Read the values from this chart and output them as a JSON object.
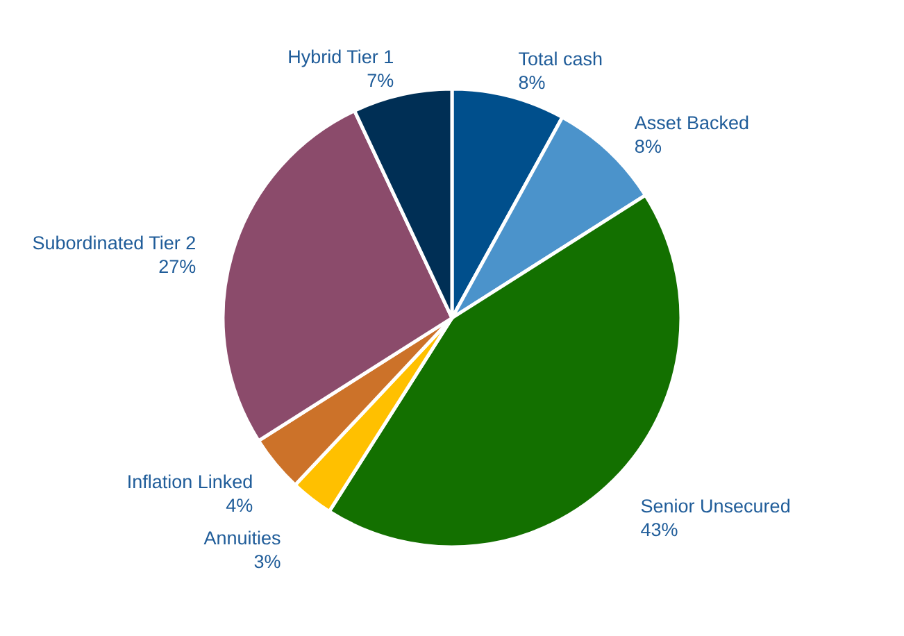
{
  "chart_data": {
    "type": "pie",
    "categories": [
      "Total cash",
      "Asset Backed",
      "Senior Unsecured",
      "Annuities",
      "Inflation Linked",
      "Subordinated Tier 2",
      "Hybrid Tier 1"
    ],
    "values": [
      8,
      8,
      43,
      3,
      4,
      27,
      7
    ],
    "value_labels": [
      "8%",
      "8%",
      "43%",
      "3%",
      "4%",
      "27%",
      "7%"
    ],
    "colors": [
      "#004f8c",
      "#4b93cb",
      "#137000",
      "#ffc000",
      "#cc7229",
      "#8b4b6b",
      "#002f55"
    ],
    "legend": false
  }
}
